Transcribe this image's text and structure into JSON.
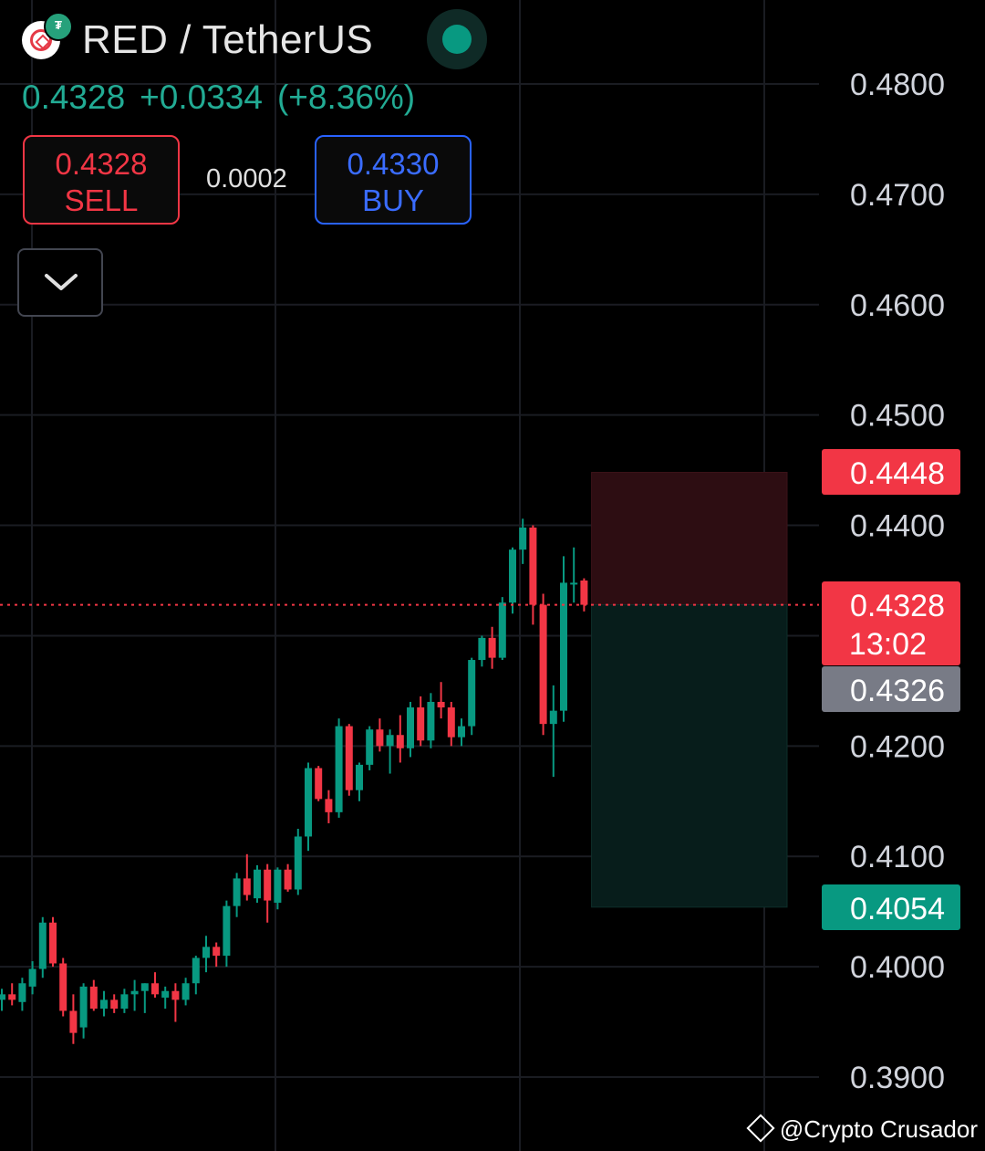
{
  "header": {
    "pair_title": "RED / TetherUS",
    "base_icon": "red-coin-icon",
    "quote_icon": "tether-badge-icon",
    "quote_badge_text": "₮",
    "last_price": "0.4328",
    "change_abs": "+0.0334",
    "change_pct": "(+8.36%)",
    "market_status": "open"
  },
  "trade": {
    "sell_price": "0.4328",
    "sell_label": "SELL",
    "spread": "0.0002",
    "buy_price": "0.4330",
    "buy_label": "BUY"
  },
  "collapse_icon": "chevron-down-icon",
  "watermark": "@Crypto Crusador",
  "colors": {
    "up": "#089981",
    "down": "#f23645",
    "stop_zone": "#2d0d12",
    "target_zone": "#071d1b",
    "gray_label": "#787b86",
    "buy_accent": "#2962ff"
  },
  "chart_data": {
    "type": "candlestick",
    "ylim": [
      0.385,
      0.4875
    ],
    "y_ticks": [
      "0.4800",
      "0.4700",
      "0.4600",
      "0.4500",
      "0.4400",
      "0.4200",
      "0.4100",
      "0.4000",
      "0.3900"
    ],
    "y_tick_values": [
      0.48,
      0.47,
      0.46,
      0.45,
      0.44,
      0.42,
      0.41,
      0.4,
      0.39
    ],
    "price_labels": [
      {
        "value": 0.4448,
        "text": "0.4448",
        "color": "#f23645"
      },
      {
        "value": 0.4328,
        "text": "0.4328",
        "sub": "13:02",
        "color": "#f23645"
      },
      {
        "value": 0.4326,
        "text": "0.4326",
        "color": "#787b86"
      },
      {
        "value": 0.4054,
        "text": "0.4054",
        "color": "#089981"
      }
    ],
    "current_price": 0.4328,
    "position": {
      "entry": 0.4328,
      "stop": 0.4448,
      "target": 0.4054,
      "start_index": 58
    },
    "candles": [
      [
        0.397,
        0.398,
        0.396,
        0.3975
      ],
      [
        0.3975,
        0.3985,
        0.3965,
        0.397
      ],
      [
        0.3968,
        0.399,
        0.396,
        0.3985
      ],
      [
        0.3982,
        0.4005,
        0.3975,
        0.3998
      ],
      [
        0.3998,
        0.4045,
        0.399,
        0.404
      ],
      [
        0.404,
        0.4045,
        0.4,
        0.4003
      ],
      [
        0.4003,
        0.4008,
        0.3955,
        0.396
      ],
      [
        0.396,
        0.3975,
        0.393,
        0.394
      ],
      [
        0.3945,
        0.3985,
        0.3935,
        0.3982
      ],
      [
        0.3982,
        0.3988,
        0.396,
        0.3962
      ],
      [
        0.3962,
        0.3978,
        0.3955,
        0.397
      ],
      [
        0.397,
        0.3975,
        0.3958,
        0.3962
      ],
      [
        0.3962,
        0.398,
        0.3958,
        0.3975
      ],
      [
        0.3975,
        0.3988,
        0.396,
        0.3978
      ],
      [
        0.3978,
        0.3985,
        0.3958,
        0.3985
      ],
      [
        0.3985,
        0.3995,
        0.3972,
        0.3975
      ],
      [
        0.3972,
        0.3982,
        0.3962,
        0.3978
      ],
      [
        0.3978,
        0.3985,
        0.395,
        0.397
      ],
      [
        0.397,
        0.399,
        0.3965,
        0.3985
      ],
      [
        0.3985,
        0.401,
        0.3975,
        0.4008
      ],
      [
        0.4008,
        0.4028,
        0.3995,
        0.4018
      ],
      [
        0.4018,
        0.4022,
        0.4,
        0.401
      ],
      [
        0.401,
        0.406,
        0.4,
        0.4055
      ],
      [
        0.4055,
        0.4085,
        0.4045,
        0.408
      ],
      [
        0.408,
        0.4102,
        0.406,
        0.4065
      ],
      [
        0.4062,
        0.4092,
        0.4058,
        0.4088
      ],
      [
        0.4088,
        0.4093,
        0.404,
        0.406
      ],
      [
        0.4058,
        0.409,
        0.4052,
        0.4088
      ],
      [
        0.4088,
        0.4093,
        0.4068,
        0.407
      ],
      [
        0.407,
        0.4125,
        0.4065,
        0.4118
      ],
      [
        0.4118,
        0.4185,
        0.4105,
        0.418
      ],
      [
        0.418,
        0.4182,
        0.415,
        0.4152
      ],
      [
        0.4152,
        0.416,
        0.413,
        0.414
      ],
      [
        0.414,
        0.4225,
        0.4135,
        0.4218
      ],
      [
        0.4218,
        0.422,
        0.4155,
        0.416
      ],
      [
        0.416,
        0.4185,
        0.415,
        0.4183
      ],
      [
        0.4183,
        0.4218,
        0.4178,
        0.4215
      ],
      [
        0.4215,
        0.4225,
        0.4195,
        0.42
      ],
      [
        0.42,
        0.4215,
        0.4175,
        0.421
      ],
      [
        0.421,
        0.4228,
        0.4185,
        0.4198
      ],
      [
        0.4198,
        0.424,
        0.419,
        0.4235
      ],
      [
        0.4235,
        0.4245,
        0.42,
        0.4205
      ],
      [
        0.4205,
        0.4248,
        0.4198,
        0.424
      ],
      [
        0.424,
        0.4258,
        0.4225,
        0.4235
      ],
      [
        0.4235,
        0.424,
        0.42,
        0.4208
      ],
      [
        0.4208,
        0.4225,
        0.42,
        0.4218
      ],
      [
        0.4218,
        0.428,
        0.421,
        0.4278
      ],
      [
        0.4278,
        0.43,
        0.4272,
        0.4298
      ],
      [
        0.4298,
        0.4308,
        0.427,
        0.428
      ],
      [
        0.428,
        0.4335,
        0.4278,
        0.433
      ],
      [
        0.433,
        0.438,
        0.432,
        0.4378
      ],
      [
        0.4378,
        0.4406,
        0.4365,
        0.4398
      ],
      [
        0.4398,
        0.44,
        0.431,
        0.4328
      ],
      [
        0.4328,
        0.4338,
        0.421,
        0.422
      ],
      [
        0.422,
        0.4255,
        0.4172,
        0.4232
      ],
      [
        0.4232,
        0.4372,
        0.4222,
        0.4348
      ],
      [
        0.4348,
        0.438,
        0.433,
        0.4348
      ],
      [
        0.435,
        0.4352,
        0.4322,
        0.4328
      ]
    ]
  }
}
